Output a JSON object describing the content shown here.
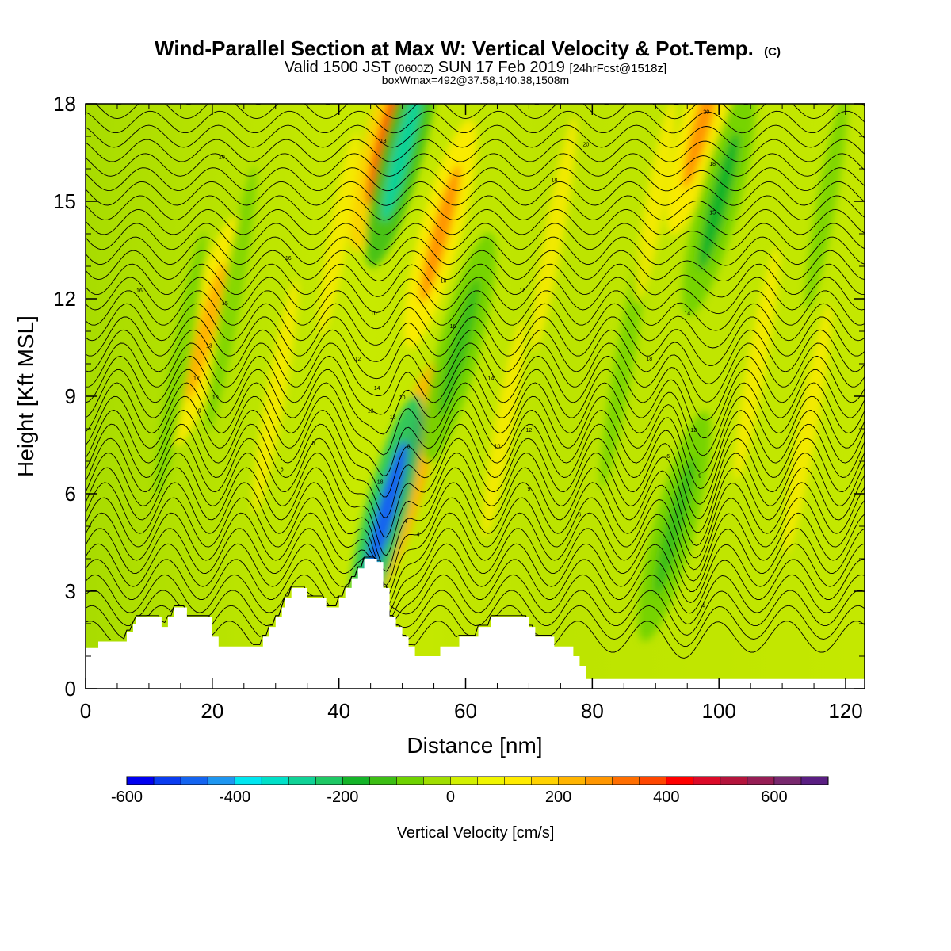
{
  "title": {
    "main": "Wind-Parallel Section at Max W: Vertical Velocity & Pot.Temp.",
    "copyright": "(C)",
    "valid_prefix": "Valid 1500 JST",
    "valid_z": "(0600Z)",
    "valid_date": "SUN 17 Feb 2019",
    "forecast": "[24hrFcst@1518z]",
    "box": "boxWmax=492@37.58,140.38,1508m"
  },
  "chart_data": {
    "type": "heatmap",
    "title": "Wind-Parallel Section at Max W: Vertical Velocity & Pot.Temp.",
    "xlabel": "Distance [nm]",
    "ylabel": "Height [Kft MSL]",
    "xlim": [
      0,
      123
    ],
    "ylim": [
      0,
      18
    ],
    "xticks": [
      0,
      20,
      40,
      60,
      80,
      100,
      120
    ],
    "yticks": [
      0,
      3,
      6,
      9,
      12,
      15,
      18
    ],
    "colorbar": {
      "label": "Vertical Velocity [cm/s]",
      "ticks": [
        -600,
        -400,
        -200,
        0,
        200,
        400,
        600
      ],
      "range": [
        -600,
        700
      ],
      "step": 50,
      "colors": [
        "#0000f0",
        "#0a3cf0",
        "#1464f0",
        "#1e96f0",
        "#00e6f0",
        "#00e0c8",
        "#10d296",
        "#1ec864",
        "#14b428",
        "#3cbe14",
        "#6ed200",
        "#a0de00",
        "#d2f000",
        "#f0f500",
        "#ffeb00",
        "#ffd200",
        "#ffb400",
        "#ff9600",
        "#ff6e00",
        "#ff4600",
        "#ff0000",
        "#dc0a28",
        "#b4143c",
        "#961e55",
        "#78286e",
        "#5a1e82"
      ]
    },
    "terrain_kft": [
      [
        0,
        1.25
      ],
      [
        2,
        1.25
      ],
      [
        2,
        1.45
      ],
      [
        6.5,
        1.45
      ],
      [
        6.5,
        1.75
      ],
      [
        7.5,
        1.75
      ],
      [
        7.5,
        2.0
      ],
      [
        8,
        2.0
      ],
      [
        8,
        2.2
      ],
      [
        12,
        2.2
      ],
      [
        12,
        1.9
      ],
      [
        13,
        1.9
      ],
      [
        13,
        2.2
      ],
      [
        14,
        2.2
      ],
      [
        14,
        2.5
      ],
      [
        16,
        2.5
      ],
      [
        16,
        2.2
      ],
      [
        20,
        2.2
      ],
      [
        20,
        1.6
      ],
      [
        21,
        1.6
      ],
      [
        21,
        1.3
      ],
      [
        28,
        1.3
      ],
      [
        28,
        1.6
      ],
      [
        29,
        1.6
      ],
      [
        29,
        1.9
      ],
      [
        30,
        1.9
      ],
      [
        30,
        2.2
      ],
      [
        31,
        2.2
      ],
      [
        31,
        2.5
      ],
      [
        31.5,
        2.5
      ],
      [
        31.5,
        2.8
      ],
      [
        32.5,
        2.8
      ],
      [
        32.5,
        3.1
      ],
      [
        35,
        3.1
      ],
      [
        35,
        2.8
      ],
      [
        38,
        2.8
      ],
      [
        38,
        2.5
      ],
      [
        40,
        2.5
      ],
      [
        40,
        2.8
      ],
      [
        41,
        2.8
      ],
      [
        41,
        3.1
      ],
      [
        42,
        3.1
      ],
      [
        42,
        3.4
      ],
      [
        43,
        3.4
      ],
      [
        43,
        3.7
      ],
      [
        44,
        3.7
      ],
      [
        44,
        4.0
      ],
      [
        46,
        4.0
      ],
      [
        46,
        3.9
      ],
      [
        47,
        3.9
      ],
      [
        47,
        3.1
      ],
      [
        48,
        3.1
      ],
      [
        48,
        2.2
      ],
      [
        49,
        2.2
      ],
      [
        49,
        1.9
      ],
      [
        50,
        1.9
      ],
      [
        50,
        1.6
      ],
      [
        51,
        1.6
      ],
      [
        51,
        1.3
      ],
      [
        52,
        1.3
      ],
      [
        52,
        1.0
      ],
      [
        56,
        1.0
      ],
      [
        56,
        1.3
      ],
      [
        59,
        1.3
      ],
      [
        59,
        1.6
      ],
      [
        62,
        1.6
      ],
      [
        62,
        1.9
      ],
      [
        64,
        1.9
      ],
      [
        64,
        2.2
      ],
      [
        70,
        2.2
      ],
      [
        70,
        1.9
      ],
      [
        71,
        1.9
      ],
      [
        71,
        1.6
      ],
      [
        74,
        1.6
      ],
      [
        74,
        1.3
      ],
      [
        77,
        1.3
      ],
      [
        77,
        1.0
      ],
      [
        78,
        1.0
      ],
      [
        78,
        0.7
      ],
      [
        79,
        0.7
      ],
      [
        79,
        0.3
      ],
      [
        123,
        0.3
      ]
    ],
    "updrafts": [
      {
        "x": 50.5,
        "y": 6.5,
        "value": 480
      },
      {
        "x": 47.5,
        "y": 17.0,
        "value": 370
      },
      {
        "x": 56.0,
        "y": 14.0,
        "value": 260
      },
      {
        "x": 19.0,
        "y": 11.0,
        "value": 220
      },
      {
        "x": 97.5,
        "y": 17.5,
        "value": 250
      }
    ],
    "downdrafts": [
      {
        "x": 47.5,
        "y": 5.5,
        "value": -480
      },
      {
        "x": 50.0,
        "y": 16.5,
        "value": -260
      },
      {
        "x": 100.0,
        "y": 15.0,
        "value": -200
      },
      {
        "x": 59.0,
        "y": 10.5,
        "value": -130
      },
      {
        "x": 93.0,
        "y": 5.0,
        "value": -140
      }
    ],
    "contour_labels": [
      {
        "x": 31,
        "y": 6.7,
        "text": "6"
      },
      {
        "x": 36,
        "y": 7.5,
        "text": "8"
      },
      {
        "x": 18,
        "y": 8.5,
        "text": "9"
      },
      {
        "x": 20.5,
        "y": 8.9,
        "text": "10"
      },
      {
        "x": 17.5,
        "y": 9.5,
        "text": "12"
      },
      {
        "x": 19.5,
        "y": 10.5,
        "text": "13"
      },
      {
        "x": 22,
        "y": 11.8,
        "text": "15"
      },
      {
        "x": 8.5,
        "y": 12.2,
        "text": "16"
      },
      {
        "x": 32,
        "y": 13.2,
        "text": "16"
      },
      {
        "x": 21.5,
        "y": 16.3,
        "text": "20"
      },
      {
        "x": 43,
        "y": 10.1,
        "text": "12"
      },
      {
        "x": 45.5,
        "y": 11.5,
        "text": "16"
      },
      {
        "x": 45,
        "y": 8.5,
        "text": "12"
      },
      {
        "x": 46,
        "y": 9.2,
        "text": "14"
      },
      {
        "x": 46.5,
        "y": 6.3,
        "text": "18"
      },
      {
        "x": 48.5,
        "y": 8.3,
        "text": "18"
      },
      {
        "x": 50,
        "y": 8.9,
        "text": "10"
      },
      {
        "x": 51,
        "y": 7.4,
        "text": "8"
      },
      {
        "x": 50.5,
        "y": 5.1,
        "text": "4"
      },
      {
        "x": 52.5,
        "y": 4.7,
        "text": "4"
      },
      {
        "x": 47,
        "y": 16.8,
        "text": "18"
      },
      {
        "x": 56.5,
        "y": 12.5,
        "text": "18"
      },
      {
        "x": 58,
        "y": 11.1,
        "text": "16"
      },
      {
        "x": 64,
        "y": 9.5,
        "text": "14"
      },
      {
        "x": 65,
        "y": 7.4,
        "text": "10"
      },
      {
        "x": 70,
        "y": 7.9,
        "text": "12"
      },
      {
        "x": 70,
        "y": 6.1,
        "text": "9"
      },
      {
        "x": 74,
        "y": 15.6,
        "text": "18"
      },
      {
        "x": 69,
        "y": 12.2,
        "text": "16"
      },
      {
        "x": 79,
        "y": 16.7,
        "text": "20"
      },
      {
        "x": 78,
        "y": 5.3,
        "text": "6"
      },
      {
        "x": 89,
        "y": 10.1,
        "text": "18"
      },
      {
        "x": 95,
        "y": 11.5,
        "text": "14"
      },
      {
        "x": 96,
        "y": 7.9,
        "text": "12"
      },
      {
        "x": 92,
        "y": 7.1,
        "text": "6"
      },
      {
        "x": 97,
        "y": 6.5,
        "text": "9"
      },
      {
        "x": 98,
        "y": 17.7,
        "text": "20"
      },
      {
        "x": 99,
        "y": 16.1,
        "text": "18"
      },
      {
        "x": 99,
        "y": 14.6,
        "text": "15"
      },
      {
        "x": 97.5,
        "y": 2.5,
        "text": "4"
      }
    ]
  }
}
